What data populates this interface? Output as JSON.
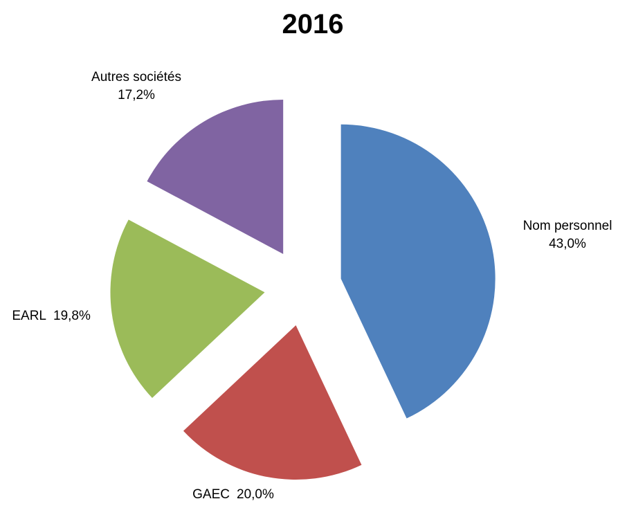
{
  "chart_data": {
    "type": "pie",
    "title": "2016",
    "categories": [
      "Nom personnel",
      "GAEC",
      "EARL",
      "Autres sociétés"
    ],
    "values": [
      43.0,
      20.0,
      19.8,
      17.2
    ],
    "value_labels": [
      "43,0%",
      "20,0%",
      "19,8%",
      "17,2%"
    ],
    "colors": [
      "#4f81bd",
      "#c0504d",
      "#9bbb59",
      "#8064a2"
    ],
    "exploded": true
  }
}
